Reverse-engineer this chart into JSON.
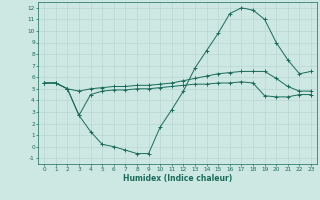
{
  "xlabel": "Humidex (Indice chaleur)",
  "x_ticks": [
    0,
    1,
    2,
    3,
    4,
    5,
    6,
    7,
    8,
    9,
    10,
    11,
    12,
    13,
    14,
    15,
    16,
    17,
    18,
    19,
    20,
    21,
    22,
    23
  ],
  "xlim": [
    -0.5,
    23.5
  ],
  "ylim": [
    -1.5,
    12.5
  ],
  "y_ticks": [
    -1,
    0,
    1,
    2,
    3,
    4,
    5,
    6,
    7,
    8,
    9,
    10,
    11,
    12
  ],
  "bg_color": "#cde8e2",
  "grid_color": "#b8d8d0",
  "line_color": "#1a6b5a",
  "line1_y": [
    5.5,
    5.5,
    5.0,
    4.8,
    5.0,
    5.1,
    5.2,
    5.2,
    5.3,
    5.3,
    5.4,
    5.5,
    5.7,
    5.9,
    6.1,
    6.3,
    6.4,
    6.5,
    6.5,
    6.5,
    5.9,
    5.2,
    4.8,
    4.8
  ],
  "line2_y": [
    5.5,
    5.5,
    5.0,
    2.7,
    1.3,
    0.2,
    0.0,
    -0.3,
    -0.6,
    -0.6,
    1.7,
    3.2,
    4.8,
    6.8,
    8.3,
    9.8,
    11.5,
    12.0,
    11.8,
    11.0,
    9.0,
    7.5,
    6.3,
    6.5
  ],
  "line3_y": [
    5.5,
    5.5,
    5.0,
    2.7,
    4.5,
    4.8,
    4.9,
    4.9,
    5.0,
    5.0,
    5.1,
    5.2,
    5.3,
    5.4,
    5.4,
    5.5,
    5.5,
    5.6,
    5.5,
    4.4,
    4.3,
    4.3,
    4.5,
    4.5
  ]
}
